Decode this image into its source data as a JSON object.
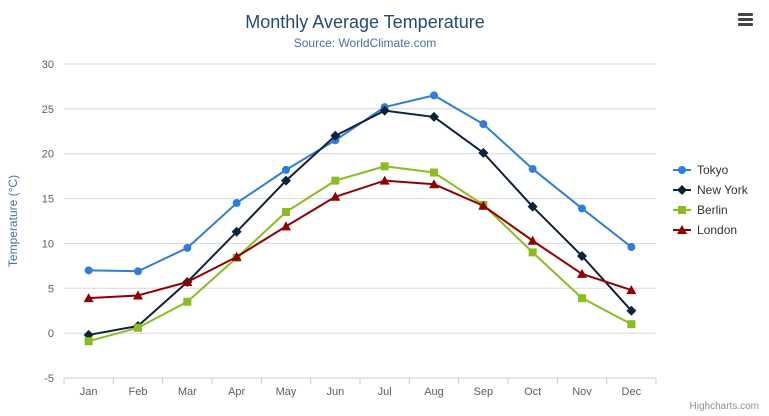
{
  "chart_data": {
    "type": "line",
    "title": "Monthly Average Temperature",
    "subtitle": "Source: WorldClimate.com",
    "categories": [
      "Jan",
      "Feb",
      "Mar",
      "Apr",
      "May",
      "Jun",
      "Jul",
      "Aug",
      "Sep",
      "Oct",
      "Nov",
      "Dec"
    ],
    "series": [
      {
        "name": "Tokyo",
        "color": "#2f7ed8",
        "marker": "circle",
        "values": [
          7.0,
          6.9,
          9.5,
          14.5,
          18.2,
          21.5,
          25.2,
          26.5,
          23.3,
          18.3,
          13.9,
          9.6
        ]
      },
      {
        "name": "New York",
        "color": "#0d233a",
        "marker": "diamond",
        "values": [
          -0.2,
          0.8,
          5.7,
          11.3,
          17.0,
          22.0,
          24.8,
          24.1,
          20.1,
          14.1,
          8.6,
          2.5
        ]
      },
      {
        "name": "Berlin",
        "color": "#8bbc21",
        "marker": "square",
        "values": [
          -0.9,
          0.6,
          3.5,
          8.4,
          13.5,
          17.0,
          18.6,
          17.9,
          14.3,
          9.0,
          3.9,
          1.0
        ]
      },
      {
        "name": "London",
        "color": "#910000",
        "marker": "triangle",
        "values": [
          3.9,
          4.2,
          5.7,
          8.5,
          11.9,
          15.2,
          17.0,
          16.6,
          14.2,
          10.3,
          6.6,
          4.8
        ]
      }
    ],
    "xlabel": "",
    "ylabel": "Temperature (°C)",
    "ylim": [
      -5,
      30
    ],
    "ytick_step": 5,
    "yticks": [
      -5,
      0,
      5,
      10,
      15,
      20,
      25,
      30
    ],
    "grid": true,
    "legend_position": "right",
    "legend": [
      "Tokyo",
      "New York",
      "Berlin",
      "London"
    ],
    "colors": {
      "title": "#274b6d",
      "subtitle": "#4572a7",
      "axis_labels": "#606060",
      "gridline": "#d8d8d8",
      "axis_line": "#c0d0e0"
    }
  },
  "credits": "Highcharts.com"
}
